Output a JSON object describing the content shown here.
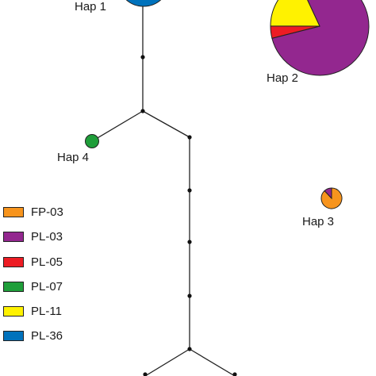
{
  "colors": {
    "line": "#222222",
    "FP-03": "#f7941d",
    "PL-03": "#93278f",
    "PL-05": "#ed1c24",
    "PL-07": "#1f9e3a",
    "PL-11": "#fff200",
    "PL-36": "#0072bc"
  },
  "legend": [
    {
      "label": "FP-03",
      "color": "#f7941d"
    },
    {
      "label": "PL-03",
      "color": "#93278f"
    },
    {
      "label": "PL-05",
      "color": "#ed1c24"
    },
    {
      "label": "PL-07",
      "color": "#1f9e3a"
    },
    {
      "label": "PL-11",
      "color": "#fff200"
    },
    {
      "label": "PL-36",
      "color": "#0072bc"
    }
  ],
  "haplotypes": [
    {
      "id": "hap1",
      "label": "Hap 1",
      "composition": [
        {
          "pop": "PL-36",
          "value": 1
        }
      ]
    },
    {
      "id": "hap2",
      "label": "Hap 2",
      "composition": [
        {
          "pop": "PL-03",
          "value": 0.78
        },
        {
          "pop": "PL-05",
          "value": 0.04
        },
        {
          "pop": "PL-11",
          "value": 0.18
        }
      ]
    },
    {
      "id": "hap3",
      "label": "Hap 3",
      "composition": [
        {
          "pop": "FP-03",
          "value": 0.88
        },
        {
          "pop": "PL-03",
          "value": 0.12
        }
      ]
    },
    {
      "id": "hap4",
      "label": "Hap 4",
      "composition": [
        {
          "pop": "PL-07",
          "value": 1
        }
      ]
    }
  ]
}
